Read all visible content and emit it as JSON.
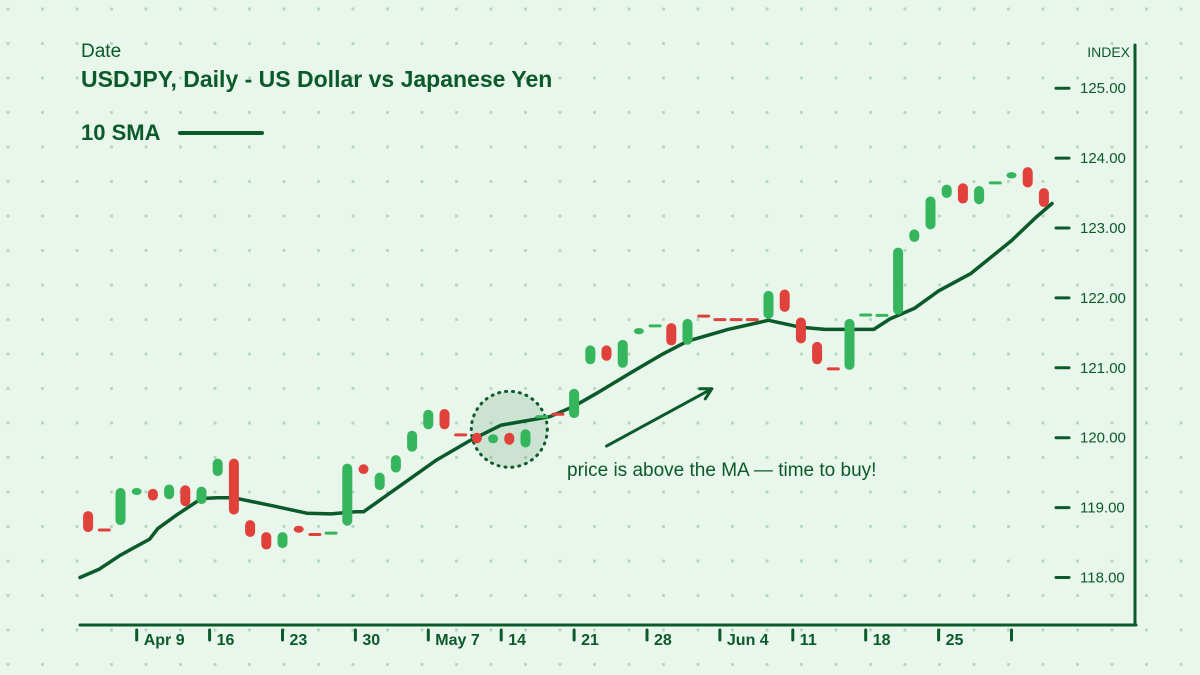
{
  "colors": {
    "background": "#e8f6ec",
    "up": "#35b55c",
    "down": "#e0413b",
    "line": "#0b5a2a",
    "dot": "#b8d7c1"
  },
  "header": {
    "date_label": "Date",
    "title": "USDJPY, Daily - US Dollar vs Japanese Yen"
  },
  "legend": {
    "sma_label": "10 SMA"
  },
  "chart_data": {
    "type": "candlestick",
    "title": "USDJPY, Daily - US Dollar vs Japanese Yen",
    "ylabel": "INDEX",
    "ylim": [
      117.5,
      125.5
    ],
    "xlim": [
      0,
      61.5
    ],
    "grid": true,
    "yticks": [
      118,
      119,
      120,
      121,
      122,
      123,
      124,
      125
    ],
    "ytick_labels": [
      "118.00",
      "119.00",
      "120.00",
      "121.00",
      "122.00",
      "123.00",
      "124.00",
      "125.00"
    ],
    "x_tick_positions": [
      3.5,
      8,
      12.5,
      17,
      21.5,
      26,
      30.5,
      35,
      39.5,
      44,
      48.5,
      53,
      57.5
    ],
    "x_tick_labels": [
      "Apr 9",
      "16",
      "23",
      "30",
      "May 7",
      "14",
      "21",
      "28",
      "Jun 4",
      "11",
      "18",
      "25",
      ""
    ],
    "candles": [
      {
        "x": 0.5,
        "open": 118.7,
        "high": 118.95,
        "low": 118.65,
        "close": 118.9,
        "dir": "down"
      },
      {
        "x": 1.5,
        "open": 118.68,
        "high": 118.68,
        "low": 118.68,
        "close": 118.68,
        "dir": "down"
      },
      {
        "x": 2.5,
        "open": 118.8,
        "high": 119.28,
        "low": 118.75,
        "close": 119.25,
        "dir": "up"
      },
      {
        "x": 3.5,
        "open": 119.2,
        "high": 119.28,
        "low": 119.18,
        "close": 119.25,
        "dir": "up"
      },
      {
        "x": 4.5,
        "open": 119.25,
        "high": 119.27,
        "low": 119.1,
        "close": 119.12,
        "dir": "down"
      },
      {
        "x": 5.5,
        "open": 119.12,
        "high": 119.33,
        "low": 119.12,
        "close": 119.3,
        "dir": "up"
      },
      {
        "x": 6.5,
        "open": 119.3,
        "high": 119.32,
        "low": 119.02,
        "close": 119.05,
        "dir": "down"
      },
      {
        "x": 7.5,
        "open": 119.05,
        "high": 119.3,
        "low": 119.05,
        "close": 119.28,
        "dir": "up"
      },
      {
        "x": 8.5,
        "open": 119.45,
        "high": 119.7,
        "low": 119.45,
        "close": 119.68,
        "dir": "up"
      },
      {
        "x": 9.5,
        "open": 119.68,
        "high": 119.7,
        "low": 118.9,
        "close": 118.95,
        "dir": "down"
      },
      {
        "x": 10.5,
        "open": 118.8,
        "high": 118.82,
        "low": 118.58,
        "close": 118.6,
        "dir": "down"
      },
      {
        "x": 11.5,
        "open": 118.65,
        "high": 118.62,
        "low": 118.4,
        "close": 118.43,
        "dir": "down"
      },
      {
        "x": 12.5,
        "open": 118.42,
        "high": 118.65,
        "low": 118.42,
        "close": 118.63,
        "dir": "up"
      },
      {
        "x": 13.5,
        "open": 118.72,
        "high": 118.74,
        "low": 118.64,
        "close": 118.66,
        "dir": "down"
      },
      {
        "x": 14.5,
        "open": 118.64,
        "high": 118.64,
        "low": 118.59,
        "close": 118.61,
        "dir": "down"
      },
      {
        "x": 15.5,
        "open": 118.62,
        "high": 118.67,
        "low": 118.6,
        "close": 118.66,
        "dir": "up"
      },
      {
        "x": 16.5,
        "open": 118.75,
        "high": 119.63,
        "low": 118.74,
        "close": 119.6,
        "dir": "up"
      },
      {
        "x": 17.5,
        "open": 119.6,
        "high": 119.62,
        "low": 119.48,
        "close": 119.5,
        "dir": "down"
      },
      {
        "x": 18.5,
        "open": 119.27,
        "high": 119.5,
        "low": 119.25,
        "close": 119.47,
        "dir": "up"
      },
      {
        "x": 19.5,
        "open": 119.5,
        "high": 119.75,
        "low": 119.5,
        "close": 119.73,
        "dir": "up"
      },
      {
        "x": 20.5,
        "open": 119.8,
        "high": 120.1,
        "low": 119.8,
        "close": 120.07,
        "dir": "up"
      },
      {
        "x": 21.5,
        "open": 120.12,
        "high": 120.4,
        "low": 120.12,
        "close": 120.37,
        "dir": "up"
      },
      {
        "x": 22.5,
        "open": 120.4,
        "high": 120.41,
        "low": 120.12,
        "close": 120.14,
        "dir": "down"
      },
      {
        "x": 23.5,
        "open": 120.05,
        "high": 120.05,
        "low": 120.03,
        "close": 120.03,
        "dir": "down"
      },
      {
        "x": 24.5,
        "open": 120.05,
        "high": 120.07,
        "low": 119.92,
        "close": 119.94,
        "dir": "down"
      },
      {
        "x": 25.5,
        "open": 119.93,
        "high": 120.05,
        "low": 119.92,
        "close": 120.03,
        "dir": "up"
      },
      {
        "x": 26.5,
        "open": 120.07,
        "high": 120.07,
        "low": 119.9,
        "close": 119.92,
        "dir": "down"
      },
      {
        "x": 27.5,
        "open": 119.87,
        "high": 120.12,
        "low": 119.86,
        "close": 120.1,
        "dir": "up"
      },
      {
        "x": 28.5,
        "open": 120.28,
        "high": 120.34,
        "low": 120.26,
        "close": 120.32,
        "dir": "up"
      },
      {
        "x": 29.5,
        "open": 120.35,
        "high": 120.37,
        "low": 120.3,
        "close": 120.32,
        "dir": "down"
      },
      {
        "x": 30.5,
        "open": 120.3,
        "high": 120.7,
        "low": 120.28,
        "close": 120.68,
        "dir": "up"
      },
      {
        "x": 31.5,
        "open": 121.05,
        "high": 121.32,
        "low": 121.05,
        "close": 121.3,
        "dir": "up"
      },
      {
        "x": 32.5,
        "open": 121.3,
        "high": 121.32,
        "low": 121.1,
        "close": 121.12,
        "dir": "down"
      },
      {
        "x": 33.5,
        "open": 121.0,
        "high": 121.4,
        "low": 121.0,
        "close": 121.38,
        "dir": "up"
      },
      {
        "x": 34.5,
        "open": 121.48,
        "high": 121.57,
        "low": 121.48,
        "close": 121.55,
        "dir": "up"
      },
      {
        "x": 35.5,
        "open": 121.6,
        "high": 121.62,
        "low": 121.58,
        "close": 121.6,
        "dir": "up"
      },
      {
        "x": 36.5,
        "open": 121.62,
        "high": 121.64,
        "low": 121.32,
        "close": 121.34,
        "dir": "down"
      },
      {
        "x": 37.5,
        "open": 121.35,
        "high": 121.7,
        "low": 121.33,
        "close": 121.68,
        "dir": "up"
      },
      {
        "x": 38.5,
        "open": 121.75,
        "high": 121.77,
        "low": 121.71,
        "close": 121.73,
        "dir": "down"
      },
      {
        "x": 39.5,
        "open": 121.7,
        "high": 121.7,
        "low": 121.68,
        "close": 121.68,
        "dir": "down"
      },
      {
        "x": 40.5,
        "open": 121.7,
        "high": 121.7,
        "low": 121.68,
        "close": 121.68,
        "dir": "down"
      },
      {
        "x": 41.5,
        "open": 121.7,
        "high": 121.7,
        "low": 121.68,
        "close": 121.68,
        "dir": "down"
      },
      {
        "x": 42.5,
        "open": 121.7,
        "high": 122.1,
        "low": 121.7,
        "close": 122.08,
        "dir": "up"
      },
      {
        "x": 43.5,
        "open": 122.1,
        "high": 122.12,
        "low": 121.8,
        "close": 121.83,
        "dir": "down"
      },
      {
        "x": 44.5,
        "open": 121.7,
        "high": 121.72,
        "low": 121.35,
        "close": 121.37,
        "dir": "down"
      },
      {
        "x": 45.5,
        "open": 121.35,
        "high": 121.37,
        "low": 121.05,
        "close": 121.07,
        "dir": "down"
      },
      {
        "x": 46.5,
        "open": 121.0,
        "high": 121.02,
        "low": 120.95,
        "close": 120.97,
        "dir": "down"
      },
      {
        "x": 47.5,
        "open": 120.98,
        "high": 121.7,
        "low": 120.97,
        "close": 121.68,
        "dir": "up"
      },
      {
        "x": 48.5,
        "open": 121.75,
        "high": 121.77,
        "low": 121.74,
        "close": 121.76,
        "dir": "up"
      },
      {
        "x": 49.5,
        "open": 121.75,
        "high": 121.76,
        "low": 121.74,
        "close": 121.75,
        "dir": "up"
      },
      {
        "x": 50.5,
        "open": 121.78,
        "high": 122.72,
        "low": 121.76,
        "close": 122.7,
        "dir": "up"
      },
      {
        "x": 51.5,
        "open": 122.8,
        "high": 122.98,
        "low": 122.8,
        "close": 122.96,
        "dir": "up"
      },
      {
        "x": 52.5,
        "open": 123.0,
        "high": 123.45,
        "low": 122.98,
        "close": 123.43,
        "dir": "up"
      },
      {
        "x": 53.5,
        "open": 123.45,
        "high": 123.62,
        "low": 123.43,
        "close": 123.6,
        "dir": "up"
      },
      {
        "x": 54.5,
        "open": 123.62,
        "high": 123.64,
        "low": 123.35,
        "close": 123.37,
        "dir": "down"
      },
      {
        "x": 55.5,
        "open": 123.35,
        "high": 123.6,
        "low": 123.34,
        "close": 123.58,
        "dir": "up"
      },
      {
        "x": 56.5,
        "open": 123.63,
        "high": 123.67,
        "low": 123.62,
        "close": 123.65,
        "dir": "up"
      },
      {
        "x": 57.5,
        "open": 123.72,
        "high": 123.8,
        "low": 123.71,
        "close": 123.78,
        "dir": "up"
      },
      {
        "x": 58.5,
        "open": 123.85,
        "high": 123.87,
        "low": 123.58,
        "close": 123.6,
        "dir": "down"
      },
      {
        "x": 59.5,
        "open": 123.55,
        "high": 123.57,
        "low": 123.3,
        "close": 123.32,
        "dir": "down"
      }
    ],
    "series": [
      {
        "name": "10 SMA",
        "points": [
          [
            0,
            118.0
          ],
          [
            1.2,
            118.12
          ],
          [
            2.5,
            118.32
          ],
          [
            4.3,
            118.55
          ],
          [
            4.8,
            118.7
          ],
          [
            6.0,
            118.9
          ],
          [
            7.5,
            119.13
          ],
          [
            8.5,
            119.14
          ],
          [
            9.5,
            119.14
          ],
          [
            12.0,
            119.02
          ],
          [
            14.0,
            118.92
          ],
          [
            15.5,
            118.91
          ],
          [
            17.0,
            118.94
          ],
          [
            17.5,
            118.94
          ],
          [
            20.0,
            119.35
          ],
          [
            22.0,
            119.68
          ],
          [
            24.0,
            119.95
          ],
          [
            26.0,
            120.18
          ],
          [
            29.0,
            120.3
          ],
          [
            30.5,
            120.45
          ],
          [
            32.0,
            120.65
          ],
          [
            34.0,
            120.93
          ],
          [
            36.0,
            121.2
          ],
          [
            37.5,
            121.38
          ],
          [
            40.0,
            121.55
          ],
          [
            42.5,
            121.68
          ],
          [
            44.5,
            121.58
          ],
          [
            46.0,
            121.55
          ],
          [
            49.0,
            121.55
          ],
          [
            50.0,
            121.7
          ],
          [
            51.5,
            121.85
          ],
          [
            53.0,
            122.1
          ],
          [
            55.0,
            122.35
          ],
          [
            57.5,
            122.82
          ],
          [
            59.0,
            123.15
          ],
          [
            60.0,
            123.35
          ]
        ]
      }
    ],
    "annotation": {
      "text": "price is above the MA — time to buy!",
      "circle_center": [
        26.5,
        120.12
      ],
      "arrow_from": [
        32.5,
        119.88
      ],
      "arrow_to": [
        39.0,
        120.7
      ]
    }
  }
}
